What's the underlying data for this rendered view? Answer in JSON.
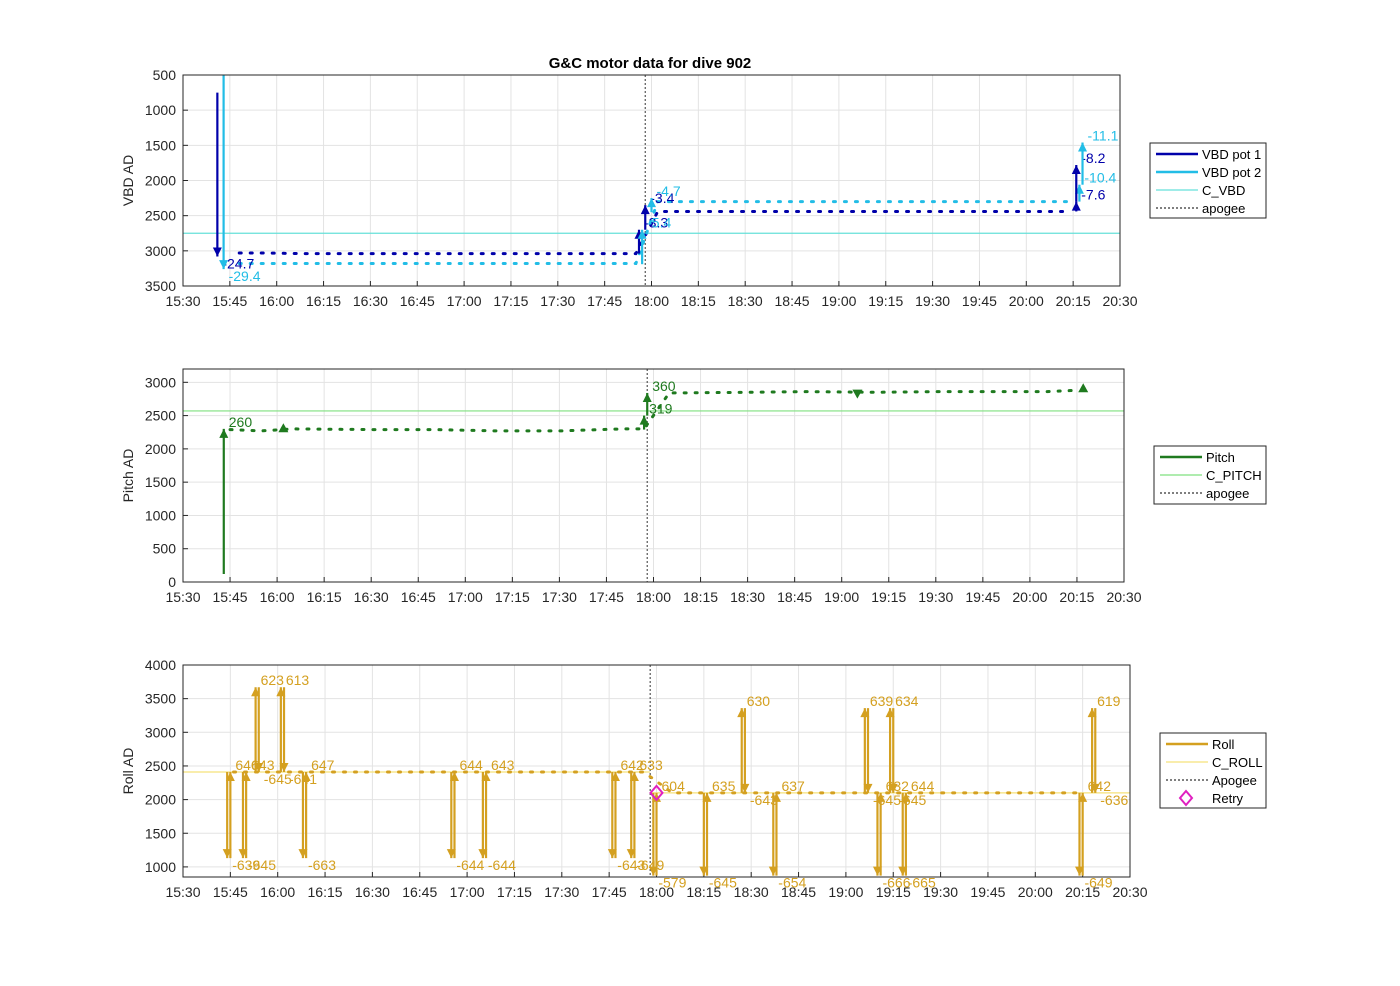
{
  "figure": {
    "title": "G&C motor data for dive 902"
  },
  "colors": {
    "vbd1": "#0000aa",
    "vbd2": "#22bde6",
    "cvbd": "#66e0d9",
    "pitch": "#1f7a1f",
    "cpitch": "#7fe07f",
    "roll": "#d4a020",
    "croll": "#f5e27a",
    "apogee": "#555555",
    "retry": "#e020c0"
  },
  "chart_data": [
    {
      "type": "line",
      "ylabel": "VBD AD",
      "ylim": [
        500,
        3500
      ],
      "y_reversed": true,
      "xlim": [
        "15:30",
        "20:30"
      ],
      "x_ticks": [
        "15:30",
        "15:45",
        "16:00",
        "16:15",
        "16:30",
        "16:45",
        "17:00",
        "17:15",
        "17:30",
        "17:45",
        "18:00",
        "18:15",
        "18:30",
        "18:45",
        "19:00",
        "19:15",
        "19:30",
        "19:45",
        "20:00",
        "20:15",
        "20:30"
      ],
      "y_ticks": [
        500,
        1000,
        1500,
        2000,
        2500,
        3000,
        3500
      ],
      "grid": true,
      "legend_position": "right",
      "legend": [
        "VBD pot 1",
        "VBD pot 2",
        "C_VBD",
        "apogee"
      ],
      "reference_lines": [
        {
          "name": "C_VBD",
          "y": 2750
        }
      ],
      "apogee": "17:58",
      "series": [
        {
          "name": "VBD pot 1",
          "x": [
            "15:48",
            "15:54",
            "16:10",
            "16:30",
            "16:50",
            "17:10",
            "17:30",
            "17:50",
            "17:55",
            "18:02",
            "18:20",
            "18:45",
            "19:10",
            "19:35",
            "20:00",
            "20:13"
          ],
          "values": [
            3030,
            3030,
            3040,
            3040,
            3040,
            3040,
            3040,
            3040,
            3040,
            2440,
            2440,
            2440,
            2440,
            2440,
            2440,
            2440
          ]
        },
        {
          "name": "VBD pot 2",
          "x": [
            "15:48",
            "15:54",
            "16:10",
            "16:30",
            "16:50",
            "17:10",
            "17:30",
            "17:50",
            "17:55",
            "18:02",
            "18:20",
            "18:45",
            "19:10",
            "19:35",
            "20:00",
            "20:13"
          ],
          "values": [
            3180,
            3180,
            3180,
            3180,
            3180,
            3180,
            3180,
            3180,
            3180,
            2300,
            2300,
            2300,
            2300,
            2300,
            2300,
            2300
          ]
        }
      ],
      "moves": [
        {
          "series": "VBD pot 1",
          "x": "15:41",
          "y0": 750,
          "y1": 3080,
          "label": "-24.7",
          "dir": "down"
        },
        {
          "series": "VBD pot 2",
          "x": "15:43",
          "y0": 500,
          "y1": 3260,
          "label": "-29.4",
          "dir": "down"
        },
        {
          "series": "VBD pot 1",
          "x": "17:56",
          "y0": 3040,
          "y1": 2700,
          "label": "-3.3",
          "dir": "up"
        },
        {
          "series": "VBD pot 2",
          "x": "17:57",
          "y0": 3190,
          "y1": 2700,
          "label": "-5.4",
          "dir": "up"
        },
        {
          "series": "VBD pot 1",
          "x": "17:58",
          "y0": 2700,
          "y1": 2350,
          "label": "-3.4",
          "dir": "up"
        },
        {
          "series": "VBD pot 2",
          "x": "18:00",
          "y0": 2450,
          "y1": 2250,
          "label": "-4.7",
          "dir": "up"
        },
        {
          "series": "VBD pot 1",
          "x": "20:16",
          "y0": 2440,
          "y1": 2300,
          "label": "-7.6",
          "dir": "up"
        },
        {
          "series": "VBD pot 2",
          "x": "20:17",
          "y0": 2300,
          "y1": 2060,
          "label": "-10.4",
          "dir": "up"
        },
        {
          "series": "VBD pot 1",
          "x": "20:16",
          "y0": 2300,
          "y1": 1780,
          "label": "-8.2",
          "dir": "up"
        },
        {
          "series": "VBD pot 2",
          "x": "20:18",
          "y0": 2060,
          "y1": 1460,
          "label": "-11.1",
          "dir": "up"
        }
      ]
    },
    {
      "type": "line",
      "ylabel": "Pitch AD",
      "ylim": [
        0,
        3200
      ],
      "xlim": [
        "15:30",
        "20:30"
      ],
      "x_ticks": [
        "15:30",
        "15:45",
        "16:00",
        "16:15",
        "16:30",
        "16:45",
        "17:00",
        "17:15",
        "17:30",
        "17:45",
        "18:00",
        "18:15",
        "18:30",
        "18:45",
        "19:00",
        "19:15",
        "19:30",
        "19:45",
        "20:00",
        "20:15",
        "20:30"
      ],
      "y_ticks": [
        0,
        500,
        1000,
        1500,
        2000,
        2500,
        3000
      ],
      "grid": true,
      "legend_position": "right",
      "legend": [
        "Pitch",
        "C_PITCH",
        "apogee"
      ],
      "reference_lines": [
        {
          "name": "C_PITCH",
          "y": 2570
        }
      ],
      "apogee": "17:58",
      "series": [
        {
          "name": "Pitch",
          "x": [
            "15:45",
            "15:55",
            "16:05",
            "16:30",
            "16:50",
            "17:10",
            "17:30",
            "17:50",
            "17:57",
            "18:05",
            "18:30",
            "18:50",
            "19:10",
            "19:30",
            "19:50",
            "20:05",
            "20:15"
          ],
          "values": [
            2290,
            2270,
            2300,
            2290,
            2290,
            2270,
            2270,
            2300,
            2300,
            2840,
            2850,
            2860,
            2850,
            2860,
            2860,
            2860,
            2880
          ]
        }
      ],
      "moves": [
        {
          "x": "15:43",
          "y0": 120,
          "y1": 2300,
          "label": "260",
          "dir": "up"
        },
        {
          "x": "17:57",
          "y0": 2290,
          "y1": 2500,
          "label": "319",
          "dir": "up"
        },
        {
          "x": "17:58",
          "y0": 2500,
          "y1": 2840,
          "label": "360",
          "dir": "up"
        }
      ],
      "markers": [
        {
          "x": "16:02",
          "y": 2310,
          "dir": "up"
        },
        {
          "x": "19:05",
          "y": 2830,
          "dir": "down"
        },
        {
          "x": "20:17",
          "y": 2910,
          "dir": "up"
        }
      ]
    },
    {
      "type": "line",
      "ylabel": "Roll AD",
      "ylim": [
        850,
        4000
      ],
      "xlim": [
        "15:30",
        "20:30"
      ],
      "x_ticks": [
        "15:30",
        "15:45",
        "16:00",
        "16:15",
        "16:30",
        "16:45",
        "17:00",
        "17:15",
        "17:30",
        "17:45",
        "18:00",
        "18:15",
        "18:30",
        "18:45",
        "19:00",
        "19:15",
        "19:30",
        "19:45",
        "20:00",
        "20:15",
        "20:30"
      ],
      "y_ticks": [
        1000,
        1500,
        2000,
        2500,
        3000,
        3500,
        4000
      ],
      "grid": true,
      "legend_position": "right",
      "legend": [
        "Roll",
        "C_ROLL",
        "Apogee",
        "Retry"
      ],
      "reference_lines": [
        {
          "name": "C_ROLL",
          "y": 2410,
          "x0": "15:30",
          "x1": "17:58"
        },
        {
          "name": "C_ROLL",
          "y": 2100,
          "x0": "17:58",
          "x1": "20:30"
        }
      ],
      "apogee": "17:58",
      "retry": {
        "x": "18:00",
        "y": 2100
      },
      "series": [
        {
          "name": "Roll",
          "x": [
            "15:46",
            "16:00",
            "16:20",
            "16:40",
            "17:00",
            "17:20",
            "17:40",
            "17:56",
            "18:05",
            "18:25",
            "18:45",
            "19:05",
            "19:25",
            "19:45",
            "20:05",
            "20:15"
          ],
          "values": [
            2410,
            2410,
            2410,
            2410,
            2410,
            2410,
            2410,
            2410,
            2100,
            2100,
            2100,
            2100,
            2100,
            2100,
            2100,
            2100
          ]
        }
      ],
      "moves": [
        {
          "x": "15:44",
          "y0": 2410,
          "y1": 1130,
          "label": "-639",
          "dir": "down"
        },
        {
          "x": "15:45",
          "y0": 1130,
          "y1": 2410,
          "label": "646",
          "dir": "up"
        },
        {
          "x": "15:49",
          "y0": 2410,
          "y1": 1130,
          "label": "-645",
          "dir": "down"
        },
        {
          "x": "15:50",
          "y0": 1130,
          "y1": 2410,
          "label": "643",
          "dir": "up"
        },
        {
          "x": "15:53",
          "y0": 2410,
          "y1": 3670,
          "label": "623",
          "dir": "up"
        },
        {
          "x": "15:54",
          "y0": 3670,
          "y1": 2410,
          "label": "-645",
          "dir": "down"
        },
        {
          "x": "16:01",
          "y0": 2410,
          "y1": 3670,
          "label": "613",
          "dir": "up"
        },
        {
          "x": "16:02",
          "y0": 3670,
          "y1": 2410,
          "label": "-641",
          "dir": "down"
        },
        {
          "x": "16:08",
          "y0": 2410,
          "y1": 1130,
          "label": "-663",
          "dir": "down"
        },
        {
          "x": "16:09",
          "y0": 1130,
          "y1": 2410,
          "label": "647",
          "dir": "up"
        },
        {
          "x": "16:55",
          "y0": 2410,
          "y1": 1130,
          "label": "-644",
          "dir": "down"
        },
        {
          "x": "16:56",
          "y0": 1130,
          "y1": 2410,
          "label": "644",
          "dir": "up"
        },
        {
          "x": "17:05",
          "y0": 2410,
          "y1": 1130,
          "label": "-644",
          "dir": "down"
        },
        {
          "x": "17:06",
          "y0": 1130,
          "y1": 2410,
          "label": "643",
          "dir": "up"
        },
        {
          "x": "17:46",
          "y0": 2410,
          "y1": 1130,
          "label": "-643",
          "dir": "down"
        },
        {
          "x": "17:47",
          "y0": 1130,
          "y1": 2410,
          "label": "642",
          "dir": "up"
        },
        {
          "x": "17:52",
          "y0": 2410,
          "y1": 1130,
          "label": "-649",
          "dir": "down"
        },
        {
          "x": "17:53",
          "y0": 1130,
          "y1": 2410,
          "label": "633",
          "dir": "up"
        },
        {
          "x": "17:59",
          "y0": 2100,
          "y1": 870,
          "label": "-579",
          "dir": "down"
        },
        {
          "x": "18:00",
          "y0": 870,
          "y1": 2100,
          "label": "604",
          "dir": "up"
        },
        {
          "x": "18:15",
          "y0": 2100,
          "y1": 870,
          "label": "-645",
          "dir": "down"
        },
        {
          "x": "18:16",
          "y0": 870,
          "y1": 2100,
          "label": "635",
          "dir": "up"
        },
        {
          "x": "18:27",
          "y0": 2100,
          "y1": 3360,
          "label": "630",
          "dir": "up"
        },
        {
          "x": "18:28",
          "y0": 3360,
          "y1": 2100,
          "label": "-643",
          "dir": "down"
        },
        {
          "x": "18:37",
          "y0": 2100,
          "y1": 870,
          "label": "-654",
          "dir": "down"
        },
        {
          "x": "18:38",
          "y0": 870,
          "y1": 2100,
          "label": "637",
          "dir": "up"
        },
        {
          "x": "19:06",
          "y0": 2100,
          "y1": 3360,
          "label": "639",
          "dir": "up"
        },
        {
          "x": "19:07",
          "y0": 3360,
          "y1": 2100,
          "label": "-645",
          "dir": "down"
        },
        {
          "x": "19:10",
          "y0": 2100,
          "y1": 870,
          "label": "-666",
          "dir": "down"
        },
        {
          "x": "19:11",
          "y0": 870,
          "y1": 2100,
          "label": "632",
          "dir": "up"
        },
        {
          "x": "19:14",
          "y0": 2100,
          "y1": 3360,
          "label": "634",
          "dir": "up"
        },
        {
          "x": "19:15",
          "y0": 3360,
          "y1": 2100,
          "label": "-645",
          "dir": "down"
        },
        {
          "x": "19:18",
          "y0": 2100,
          "y1": 870,
          "label": "-665",
          "dir": "down"
        },
        {
          "x": "19:19",
          "y0": 870,
          "y1": 2100,
          "label": "644",
          "dir": "up"
        },
        {
          "x": "20:14",
          "y0": 2100,
          "y1": 870,
          "label": "-649",
          "dir": "down"
        },
        {
          "x": "20:15",
          "y0": 870,
          "y1": 2100,
          "label": "642",
          "dir": "up"
        },
        {
          "x": "20:18",
          "y0": 2100,
          "y1": 3360,
          "label": "619",
          "dir": "up"
        },
        {
          "x": "20:19",
          "y0": 3360,
          "y1": 2100,
          "label": "-636",
          "dir": "down"
        }
      ]
    }
  ]
}
